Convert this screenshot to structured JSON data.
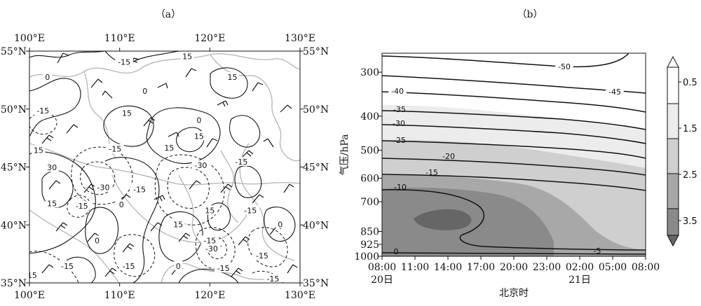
{
  "chart_data": [
    {
      "type": "map",
      "panel_label": "（a）",
      "lon_ticks": [
        "100°E",
        "110°E",
        "120°E",
        "130°E"
      ],
      "lat_ticks": [
        "55°N",
        "50°N",
        "45°N",
        "40°N",
        "35°N"
      ],
      "lon_range": [
        100,
        130
      ],
      "lat_range": [
        35,
        55
      ],
      "contour_labels": [
        {
          "text": "-15",
          "lon": 110.5,
          "lat": 54.0
        },
        {
          "text": "15",
          "lon": 117.5,
          "lat": 54.5
        },
        {
          "text": "0",
          "lon": 102.0,
          "lat": 52.7
        },
        {
          "text": "15",
          "lon": 122.5,
          "lat": 52.7
        },
        {
          "text": "0",
          "lon": 112.8,
          "lat": 51.5
        },
        {
          "text": "-15",
          "lon": 101.5,
          "lat": 49.8
        },
        {
          "text": "15",
          "lon": 110.8,
          "lat": 49.6
        },
        {
          "text": "0",
          "lon": 118.8,
          "lat": 49.0
        },
        {
          "text": "15",
          "lon": 118.8,
          "lat": 47.6
        },
        {
          "text": "15",
          "lon": 101.0,
          "lat": 46.4
        },
        {
          "text": "15",
          "lon": 115.5,
          "lat": 46.6
        },
        {
          "text": "-15",
          "lon": 109.5,
          "lat": 46.5
        },
        {
          "text": "-30",
          "lon": 119.0,
          "lat": 45.1
        },
        {
          "text": "-15",
          "lon": 123.5,
          "lat": 45.4
        },
        {
          "text": "30",
          "lon": 102.5,
          "lat": 44.9
        },
        {
          "text": "-30",
          "lon": 108.2,
          "lat": 43.2
        },
        {
          "text": "-15",
          "lon": 112.2,
          "lat": 43.0
        },
        {
          "text": "15",
          "lon": 102.5,
          "lat": 41.8
        },
        {
          "text": "-15",
          "lon": 105.8,
          "lat": 41.6
        },
        {
          "text": "0",
          "lon": 110.2,
          "lat": 41.7
        },
        {
          "text": "15",
          "lon": 120.0,
          "lat": 41.2
        },
        {
          "text": "-15",
          "lon": 124.5,
          "lat": 41.2
        },
        {
          "text": "0",
          "lon": 127.8,
          "lat": 40.0
        },
        {
          "text": "15",
          "lon": 116.5,
          "lat": 40.0
        },
        {
          "text": "-15",
          "lon": 120.0,
          "lat": 38.6
        },
        {
          "text": "0",
          "lon": 107.5,
          "lat": 38.6
        },
        {
          "text": "-30",
          "lon": 120.2,
          "lat": 37.9
        },
        {
          "text": "-15",
          "lon": 125.8,
          "lat": 37.3
        },
        {
          "text": "-15",
          "lon": 104.2,
          "lat": 36.4
        },
        {
          "text": "-15",
          "lon": 111.0,
          "lat": 36.4
        },
        {
          "text": "0",
          "lon": 116.5,
          "lat": 36.4
        },
        {
          "text": "-15",
          "lon": 121.5,
          "lat": 36.2
        },
        {
          "text": "15",
          "lon": 100.3,
          "lat": 35.6
        },
        {
          "text": "-15",
          "lon": 127.0,
          "lat": 35.3
        }
      ]
    },
    {
      "type": "contour",
      "panel_label": "（b）",
      "xlabel": "北京时",
      "ylabel": "气压/hPa",
      "x_ticks": [
        "08:00",
        "11:00",
        "14:00",
        "17:00",
        "20:00",
        "23:00",
        "02:00",
        "05:00",
        "08:00"
      ],
      "date_labels": [
        {
          "text": "20日",
          "tick": 0
        },
        {
          "text": "21日",
          "tick": 6
        }
      ],
      "y_ticks": [
        300,
        400,
        500,
        600,
        700,
        850,
        925,
        1000
      ],
      "contour_labels": [
        "-50",
        "-45",
        "-40",
        "-35",
        "-30",
        "-25",
        "-20",
        "-15",
        "-10",
        "0",
        "-5"
      ],
      "colorbar": {
        "ticks": [
          "0.5",
          "1.5",
          "2.5",
          "3.5"
        ],
        "range": [
          0,
          4
        ]
      }
    }
  ]
}
